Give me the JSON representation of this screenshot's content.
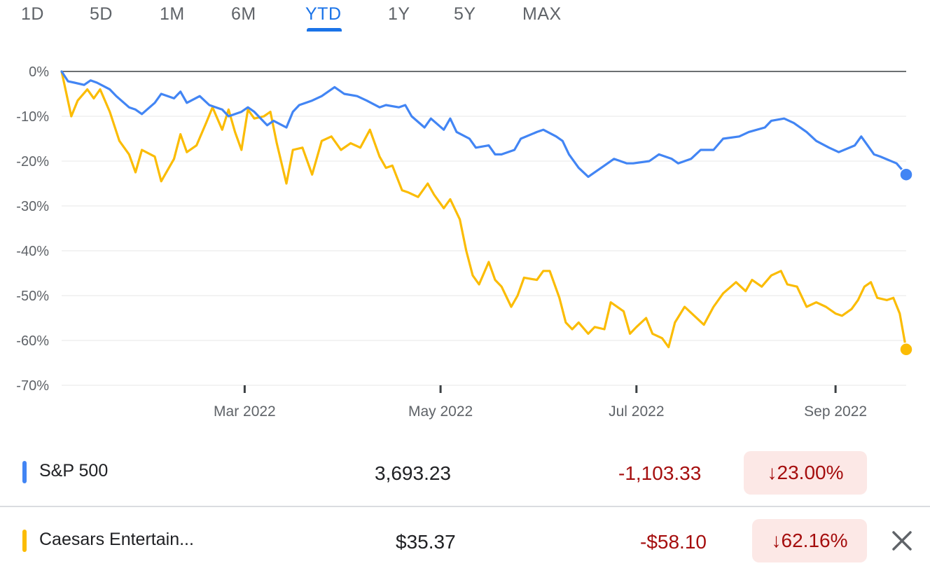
{
  "tabs": [
    {
      "label": "1D",
      "active": false
    },
    {
      "label": "5D",
      "active": false
    },
    {
      "label": "1M",
      "active": false
    },
    {
      "label": "6M",
      "active": false
    },
    {
      "label": "YTD",
      "active": true
    },
    {
      "label": "1Y",
      "active": false
    },
    {
      "label": "5Y",
      "active": false
    },
    {
      "label": "MAX",
      "active": false
    }
  ],
  "colors": {
    "sp500": "#4285f4",
    "caesars": "#fbbc04",
    "accent": "#1a73e8",
    "negative": "#a50e0e",
    "negative_bg": "#fce8e6"
  },
  "chart_data": {
    "type": "line",
    "y_ticks": [
      "0%",
      "-10%",
      "-20%",
      "-30%",
      "-40%",
      "-50%",
      "-60%",
      "-70%"
    ],
    "x_ticks": [
      "Mar 2022",
      "May 2022",
      "Jul 2022",
      "Sep 2022"
    ],
    "ylim": [
      -70,
      0
    ],
    "xlim": [
      "2022-01-03",
      "2022-09-23"
    ],
    "grid": true,
    "series": [
      {
        "name": "S&P 500",
        "color": "#4285f4",
        "points": [
          [
            "2022-01-03",
            0
          ],
          [
            "2022-01-05",
            -2.2
          ],
          [
            "2022-01-07",
            -2.5
          ],
          [
            "2022-01-10",
            -3
          ],
          [
            "2022-01-12",
            -2
          ],
          [
            "2022-01-14",
            -2.5
          ],
          [
            "2022-01-18",
            -4
          ],
          [
            "2022-01-20",
            -5.5
          ],
          [
            "2022-01-24",
            -8
          ],
          [
            "2022-01-26",
            -8.5
          ],
          [
            "2022-01-28",
            -9.5
          ],
          [
            "2022-02-01",
            -7
          ],
          [
            "2022-02-03",
            -5
          ],
          [
            "2022-02-07",
            -6
          ],
          [
            "2022-02-09",
            -4.5
          ],
          [
            "2022-02-11",
            -7
          ],
          [
            "2022-02-15",
            -5.5
          ],
          [
            "2022-02-18",
            -7.5
          ],
          [
            "2022-02-22",
            -8.5
          ],
          [
            "2022-02-24",
            -10
          ],
          [
            "2022-02-28",
            -9
          ],
          [
            "2022-03-02",
            -8
          ],
          [
            "2022-03-04",
            -9
          ],
          [
            "2022-03-08",
            -12
          ],
          [
            "2022-03-10",
            -11
          ],
          [
            "2022-03-14",
            -12.5
          ],
          [
            "2022-03-16",
            -9
          ],
          [
            "2022-03-18",
            -7.5
          ],
          [
            "2022-03-22",
            -6.5
          ],
          [
            "2022-03-25",
            -5.5
          ],
          [
            "2022-03-29",
            -3.5
          ],
          [
            "2022-04-01",
            -5
          ],
          [
            "2022-04-05",
            -5.5
          ],
          [
            "2022-04-08",
            -6.5
          ],
          [
            "2022-04-12",
            -8
          ],
          [
            "2022-04-14",
            -7.5
          ],
          [
            "2022-04-18",
            -8
          ],
          [
            "2022-04-20",
            -7.5
          ],
          [
            "2022-04-22",
            -10
          ],
          [
            "2022-04-26",
            -12.5
          ],
          [
            "2022-04-28",
            -10.5
          ],
          [
            "2022-05-02",
            -13
          ],
          [
            "2022-05-04",
            -10.5
          ],
          [
            "2022-05-06",
            -13.5
          ],
          [
            "2022-05-10",
            -15
          ],
          [
            "2022-05-12",
            -17
          ],
          [
            "2022-05-16",
            -16.5
          ],
          [
            "2022-05-18",
            -18.5
          ],
          [
            "2022-05-20",
            -18.5
          ],
          [
            "2022-05-24",
            -17.5
          ],
          [
            "2022-05-26",
            -15
          ],
          [
            "2022-05-31",
            -13.5
          ],
          [
            "2022-06-02",
            -13
          ],
          [
            "2022-06-06",
            -14.5
          ],
          [
            "2022-06-08",
            -15.5
          ],
          [
            "2022-06-10",
            -18.5
          ],
          [
            "2022-06-13",
            -21.5
          ],
          [
            "2022-06-16",
            -23.5
          ],
          [
            "2022-06-17",
            -23
          ],
          [
            "2022-06-21",
            -21
          ],
          [
            "2022-06-24",
            -19.5
          ],
          [
            "2022-06-28",
            -20.5
          ],
          [
            "2022-06-30",
            -20.5
          ],
          [
            "2022-07-05",
            -20
          ],
          [
            "2022-07-08",
            -18.5
          ],
          [
            "2022-07-12",
            -19.5
          ],
          [
            "2022-07-14",
            -20.5
          ],
          [
            "2022-07-18",
            -19.5
          ],
          [
            "2022-07-21",
            -17.5
          ],
          [
            "2022-07-25",
            -17.5
          ],
          [
            "2022-07-28",
            -15
          ],
          [
            "2022-08-02",
            -14.5
          ],
          [
            "2022-08-05",
            -13.5
          ],
          [
            "2022-08-10",
            -12.5
          ],
          [
            "2022-08-12",
            -11
          ],
          [
            "2022-08-16",
            -10.5
          ],
          [
            "2022-08-19",
            -11.5
          ],
          [
            "2022-08-23",
            -13.5
          ],
          [
            "2022-08-26",
            -15.5
          ],
          [
            "2022-08-30",
            -17
          ],
          [
            "2022-09-02",
            -18
          ],
          [
            "2022-09-07",
            -16.5
          ],
          [
            "2022-09-09",
            -14.5
          ],
          [
            "2022-09-13",
            -18.5
          ],
          [
            "2022-09-15",
            -19
          ],
          [
            "2022-09-20",
            -20.5
          ],
          [
            "2022-09-23",
            -23
          ]
        ]
      },
      {
        "name": "Caesars Entertain...",
        "color": "#fbbc04",
        "points": [
          [
            "2022-01-03",
            0
          ],
          [
            "2022-01-06",
            -10
          ],
          [
            "2022-01-08",
            -6.5
          ],
          [
            "2022-01-11",
            -4
          ],
          [
            "2022-01-13",
            -6
          ],
          [
            "2022-01-15",
            -4
          ],
          [
            "2022-01-18",
            -9
          ],
          [
            "2022-01-21",
            -15.5
          ],
          [
            "2022-01-24",
            -18.5
          ],
          [
            "2022-01-26",
            -22.5
          ],
          [
            "2022-01-28",
            -17.5
          ],
          [
            "2022-02-01",
            -19
          ],
          [
            "2022-02-03",
            -24.5
          ],
          [
            "2022-02-07",
            -19.5
          ],
          [
            "2022-02-09",
            -14
          ],
          [
            "2022-02-11",
            -18
          ],
          [
            "2022-02-14",
            -16.5
          ],
          [
            "2022-02-17",
            -11.5
          ],
          [
            "2022-02-19",
            -8
          ],
          [
            "2022-02-22",
            -13
          ],
          [
            "2022-02-24",
            -8.5
          ],
          [
            "2022-02-26",
            -13.5
          ],
          [
            "2022-02-28",
            -17.5
          ],
          [
            "2022-03-02",
            -8.5
          ],
          [
            "2022-03-04",
            -10.5
          ],
          [
            "2022-03-07",
            -10
          ],
          [
            "2022-03-09",
            -9
          ],
          [
            "2022-03-11",
            -16
          ],
          [
            "2022-03-14",
            -25
          ],
          [
            "2022-03-16",
            -17.5
          ],
          [
            "2022-03-19",
            -17
          ],
          [
            "2022-03-22",
            -23
          ],
          [
            "2022-03-25",
            -15.5
          ],
          [
            "2022-03-28",
            -14.5
          ],
          [
            "2022-03-31",
            -17.5
          ],
          [
            "2022-04-03",
            -16
          ],
          [
            "2022-04-06",
            -17
          ],
          [
            "2022-04-09",
            -13
          ],
          [
            "2022-04-12",
            -19
          ],
          [
            "2022-04-14",
            -21.5
          ],
          [
            "2022-04-16",
            -21
          ],
          [
            "2022-04-19",
            -26.5
          ],
          [
            "2022-04-21",
            -27
          ],
          [
            "2022-04-24",
            -28
          ],
          [
            "2022-04-27",
            -25
          ],
          [
            "2022-04-29",
            -27.5
          ],
          [
            "2022-05-02",
            -30.5
          ],
          [
            "2022-05-04",
            -28.5
          ],
          [
            "2022-05-07",
            -33
          ],
          [
            "2022-05-09",
            -40
          ],
          [
            "2022-05-11",
            -45.5
          ],
          [
            "2022-05-13",
            -47.5
          ],
          [
            "2022-05-16",
            -42.5
          ],
          [
            "2022-05-18",
            -46.5
          ],
          [
            "2022-05-20",
            -48
          ],
          [
            "2022-05-23",
            -52.5
          ],
          [
            "2022-05-25",
            -50
          ],
          [
            "2022-05-27",
            -46
          ],
          [
            "2022-05-31",
            -46.5
          ],
          [
            "2022-06-02",
            -44.5
          ],
          [
            "2022-06-04",
            -44.5
          ],
          [
            "2022-06-07",
            -50.5
          ],
          [
            "2022-06-09",
            -56
          ],
          [
            "2022-06-11",
            -57.5
          ],
          [
            "2022-06-13",
            -56
          ],
          [
            "2022-06-16",
            -58.5
          ],
          [
            "2022-06-18",
            -57
          ],
          [
            "2022-06-21",
            -57.5
          ],
          [
            "2022-06-23",
            -51.5
          ],
          [
            "2022-06-27",
            -53.5
          ],
          [
            "2022-06-29",
            -58.5
          ],
          [
            "2022-07-01",
            -57
          ],
          [
            "2022-07-04",
            -55
          ],
          [
            "2022-07-06",
            -58.5
          ],
          [
            "2022-07-09",
            -59.5
          ],
          [
            "2022-07-11",
            -61.5
          ],
          [
            "2022-07-13",
            -56
          ],
          [
            "2022-07-16",
            -52.5
          ],
          [
            "2022-07-19",
            -54.5
          ],
          [
            "2022-07-22",
            -56.5
          ],
          [
            "2022-07-25",
            -52.5
          ],
          [
            "2022-07-28",
            -49.5
          ],
          [
            "2022-08-01",
            -47
          ],
          [
            "2022-08-04",
            -49
          ],
          [
            "2022-08-06",
            -46.5
          ],
          [
            "2022-08-09",
            -48
          ],
          [
            "2022-08-12",
            -45.5
          ],
          [
            "2022-08-15",
            -44.5
          ],
          [
            "2022-08-17",
            -47.5
          ],
          [
            "2022-08-20",
            -48
          ],
          [
            "2022-08-23",
            -52.5
          ],
          [
            "2022-08-26",
            -51.5
          ],
          [
            "2022-08-29",
            -52.5
          ],
          [
            "2022-09-01",
            -54
          ],
          [
            "2022-09-03",
            -54.5
          ],
          [
            "2022-09-06",
            -53
          ],
          [
            "2022-09-08",
            -51
          ],
          [
            "2022-09-10",
            -48
          ],
          [
            "2022-09-12",
            -47
          ],
          [
            "2022-09-14",
            -50.5
          ],
          [
            "2022-09-17",
            -51
          ],
          [
            "2022-09-19",
            -50.5
          ],
          [
            "2022-09-21",
            -54
          ],
          [
            "2022-09-23",
            -62
          ]
        ]
      }
    ]
  },
  "rows": [
    {
      "name": "S&P 500",
      "price": "3,693.23",
      "change": "-1,103.33",
      "percent": "23.00%"
    },
    {
      "name": "Caesars Entertain...",
      "price": "$35.37",
      "change": "-$58.10",
      "percent": "62.16%"
    }
  ],
  "icons": {
    "down_arrow": "arrow-down-icon",
    "close": "close-icon"
  }
}
